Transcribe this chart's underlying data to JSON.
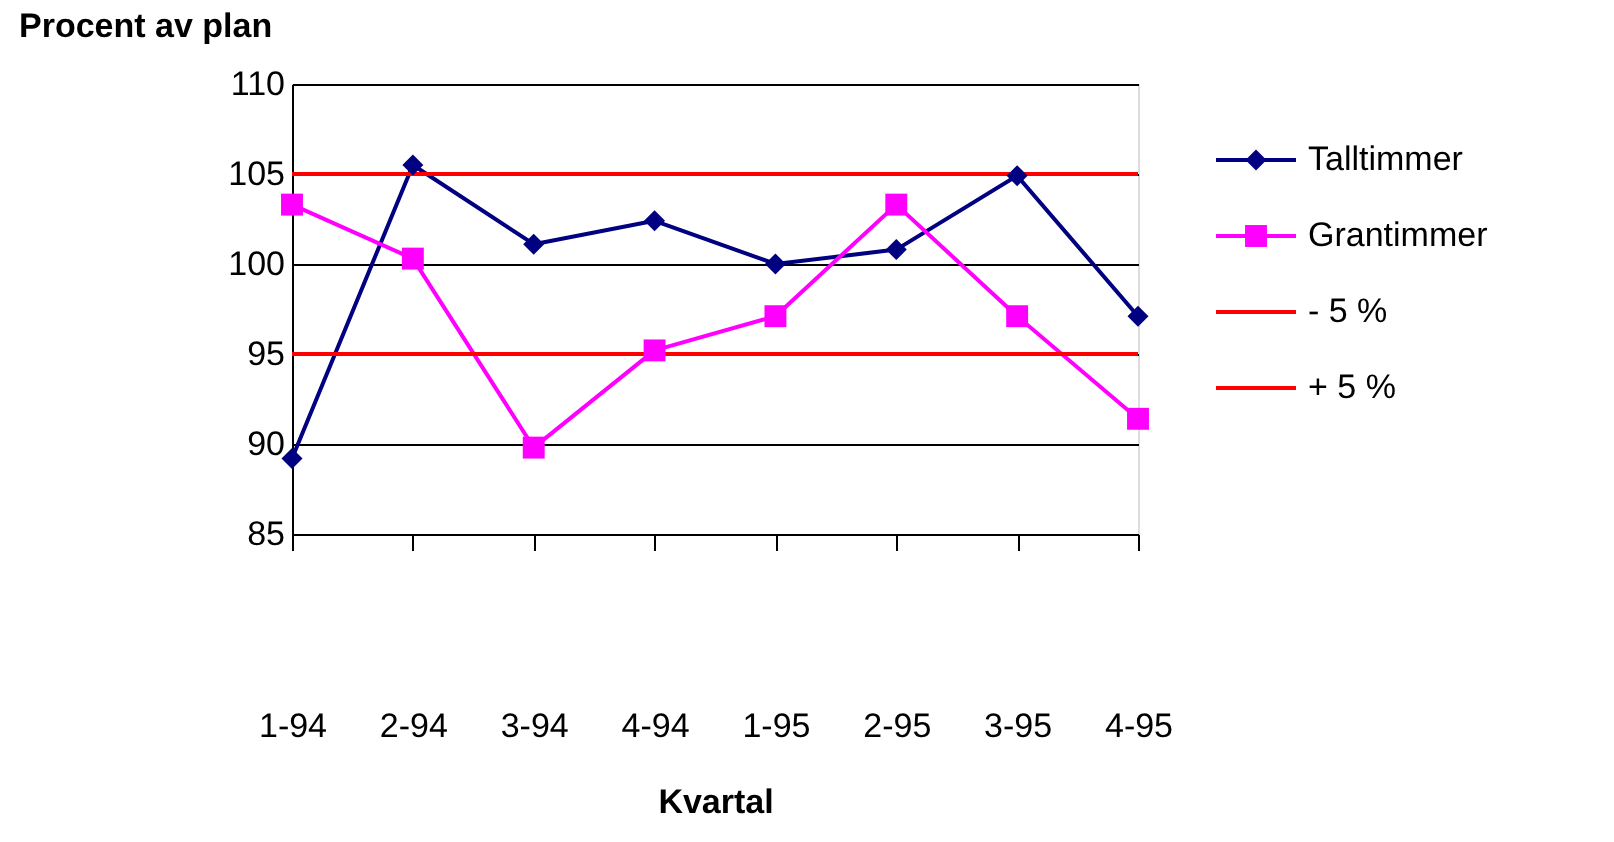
{
  "chart_data": {
    "type": "line",
    "ylabel": "Procent av plan",
    "xlabel": "Kvartal",
    "categories": [
      "1-94",
      "2-94",
      "3-94",
      "4-94",
      "1-95",
      "2-95",
      "3-95",
      "4-95"
    ],
    "series": [
      {
        "name": "Talltimmer",
        "color": "#000080",
        "marker": "diamond",
        "values": [
          89.2,
          105.5,
          101.1,
          102.4,
          100.0,
          100.8,
          104.9,
          97.1
        ]
      },
      {
        "name": "Grantimmer",
        "color": "#ff00ff",
        "marker": "square",
        "values": [
          103.3,
          100.3,
          89.8,
          95.2,
          97.1,
          103.3,
          97.1,
          91.4
        ]
      },
      {
        "name": "- 5 %",
        "color": "#ff0000",
        "marker": "none",
        "values": [
          105,
          105,
          105,
          105,
          105,
          105,
          105,
          105
        ]
      },
      {
        "name": "+ 5 %",
        "color": "#ff0000",
        "marker": "none",
        "values": [
          95,
          95,
          95,
          95,
          95,
          95,
          95,
          95
        ]
      }
    ],
    "ylim": [
      85,
      110
    ],
    "yticks": [
      85,
      90,
      95,
      100,
      105,
      110
    ],
    "grid": "y",
    "legend": "right"
  }
}
